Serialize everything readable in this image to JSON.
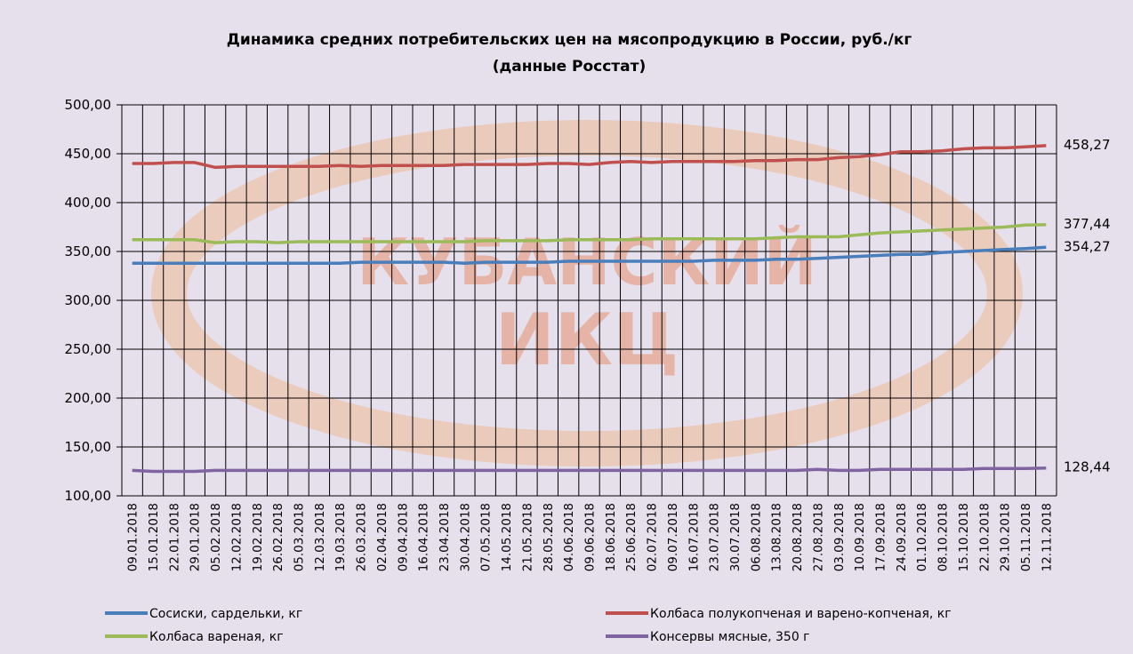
{
  "chart_data": {
    "type": "line",
    "title": "Динамика средних потребительских цен на мясопродукцию в России, руб./кг",
    "subtitle": "(данные Росстат)",
    "watermark": [
      "КУБАНСКИЙ",
      "ИКЦ"
    ],
    "categories": [
      "09.01.2018",
      "15.01.2018",
      "22.01.2018",
      "29.01.2018",
      "05.02.2018",
      "12.02.2018",
      "19.02.2018",
      "26.02.2018",
      "05.03.2018",
      "12.03.2018",
      "19.03.2018",
      "26.03.2018",
      "02.04.2018",
      "09.04.2018",
      "16.04.2018",
      "23.04.2018",
      "30.04.2018",
      "07.05.2018",
      "14.05.2018",
      "21.05.2018",
      "28.05.2018",
      "04.06.2018",
      "09.06.2018",
      "18.06.2018",
      "25.06.2018",
      "02.07.2018",
      "09.07.2018",
      "16.07.2018",
      "23.07.2018",
      "30.07.2018",
      "06.08.2018",
      "13.08.2018",
      "20.08.2018",
      "27.08.2018",
      "03.09.2018",
      "10.09.2018",
      "17.09.2018",
      "24.09.2018",
      "01.10.2018",
      "08.10.2018",
      "15.10.2018",
      "22.10.2018",
      "29.10.2018",
      "05.11.2018",
      "12.11.2018"
    ],
    "series": [
      {
        "name": "Сосиски, сардельки, кг",
        "color": "#4a7ebb",
        "values": [
          338,
          338,
          338,
          338,
          338,
          338,
          338,
          338,
          338,
          338,
          338,
          339,
          339,
          339,
          339,
          339,
          338,
          339,
          339,
          339,
          339,
          340,
          340,
          340,
          340,
          340,
          340,
          340,
          341,
          341,
          341,
          342,
          342,
          343,
          344,
          345,
          346,
          347,
          347,
          349,
          350,
          351,
          352,
          353,
          354.27
        ],
        "value_labels": [
          null,
          null,
          null,
          null,
          null,
          null,
          null,
          null,
          null,
          null,
          null,
          null,
          null,
          null,
          null,
          null,
          null,
          null,
          null,
          null,
          null,
          null,
          null,
          null,
          null,
          null,
          null,
          null,
          null,
          null,
          null,
          null,
          null,
          null,
          null,
          null,
          null,
          null,
          null,
          null,
          null,
          null,
          null,
          null,
          "354,27"
        ]
      },
      {
        "name": "Колбаса полукопченая и варено-копченая, кг",
        "color": "#c0504d",
        "values": [
          440,
          440,
          441,
          441,
          436,
          437,
          437,
          437,
          437,
          437,
          438,
          437,
          438,
          438,
          438,
          438,
          439,
          439,
          439,
          439,
          440,
          440,
          439,
          441,
          442,
          441,
          442,
          442,
          442,
          442,
          443,
          443,
          444,
          444,
          446,
          447,
          449,
          452,
          452,
          453,
          455,
          456,
          456,
          457,
          458.27
        ],
        "value_labels": [
          null,
          null,
          null,
          null,
          null,
          null,
          null,
          null,
          null,
          null,
          null,
          null,
          null,
          null,
          null,
          null,
          null,
          null,
          null,
          null,
          null,
          null,
          null,
          null,
          null,
          null,
          null,
          null,
          null,
          null,
          null,
          null,
          null,
          null,
          null,
          null,
          null,
          null,
          null,
          null,
          null,
          null,
          null,
          null,
          "458,27"
        ]
      },
      {
        "name": "Колбаса вареная, кг",
        "color": "#9bbb59",
        "values": [
          362,
          362,
          362,
          362,
          359,
          360,
          360,
          359,
          360,
          360,
          360,
          360,
          360,
          360,
          360,
          360,
          360,
          361,
          361,
          361,
          361,
          362,
          362,
          362,
          362,
          363,
          363,
          363,
          363,
          363,
          363,
          364,
          365,
          365,
          365,
          367,
          369,
          370,
          371,
          372,
          373,
          374,
          375,
          377,
          377.44
        ],
        "value_labels": [
          null,
          null,
          null,
          null,
          null,
          null,
          null,
          null,
          null,
          null,
          null,
          null,
          null,
          null,
          null,
          null,
          null,
          null,
          null,
          null,
          null,
          null,
          null,
          null,
          null,
          null,
          null,
          null,
          null,
          null,
          null,
          null,
          null,
          null,
          null,
          null,
          null,
          null,
          null,
          null,
          null,
          null,
          null,
          null,
          "377,44"
        ]
      },
      {
        "name": "Консервы мясные, 350 г",
        "color": "#8064a2",
        "values": [
          126,
          125,
          125,
          125,
          126,
          126,
          126,
          126,
          126,
          126,
          126,
          126,
          126,
          126,
          126,
          126,
          126,
          126,
          126,
          126,
          126,
          126,
          126,
          126,
          126,
          126,
          126,
          126,
          126,
          126,
          126,
          126,
          126,
          127,
          126,
          126,
          127,
          127,
          127,
          127,
          127,
          128,
          128,
          128,
          128.44
        ],
        "value_labels": [
          null,
          null,
          null,
          null,
          null,
          null,
          null,
          null,
          null,
          null,
          null,
          null,
          null,
          null,
          null,
          null,
          null,
          null,
          null,
          null,
          null,
          null,
          null,
          null,
          null,
          null,
          null,
          null,
          null,
          null,
          null,
          null,
          null,
          null,
          null,
          null,
          null,
          null,
          null,
          null,
          null,
          null,
          null,
          null,
          "128,44"
        ]
      }
    ],
    "ylim": [
      100,
      500
    ],
    "yticks": [
      {
        "value": 100,
        "label": "100,00"
      },
      {
        "value": 150,
        "label": "150,00"
      },
      {
        "value": 200,
        "label": "200,00"
      },
      {
        "value": 250,
        "label": "250,00"
      },
      {
        "value": 300,
        "label": "300,00"
      },
      {
        "value": 350,
        "label": "350,00"
      },
      {
        "value": 400,
        "label": "400,00"
      },
      {
        "value": 450,
        "label": "450,00"
      },
      {
        "value": 500,
        "label": "500,00"
      }
    ],
    "grid": true
  }
}
